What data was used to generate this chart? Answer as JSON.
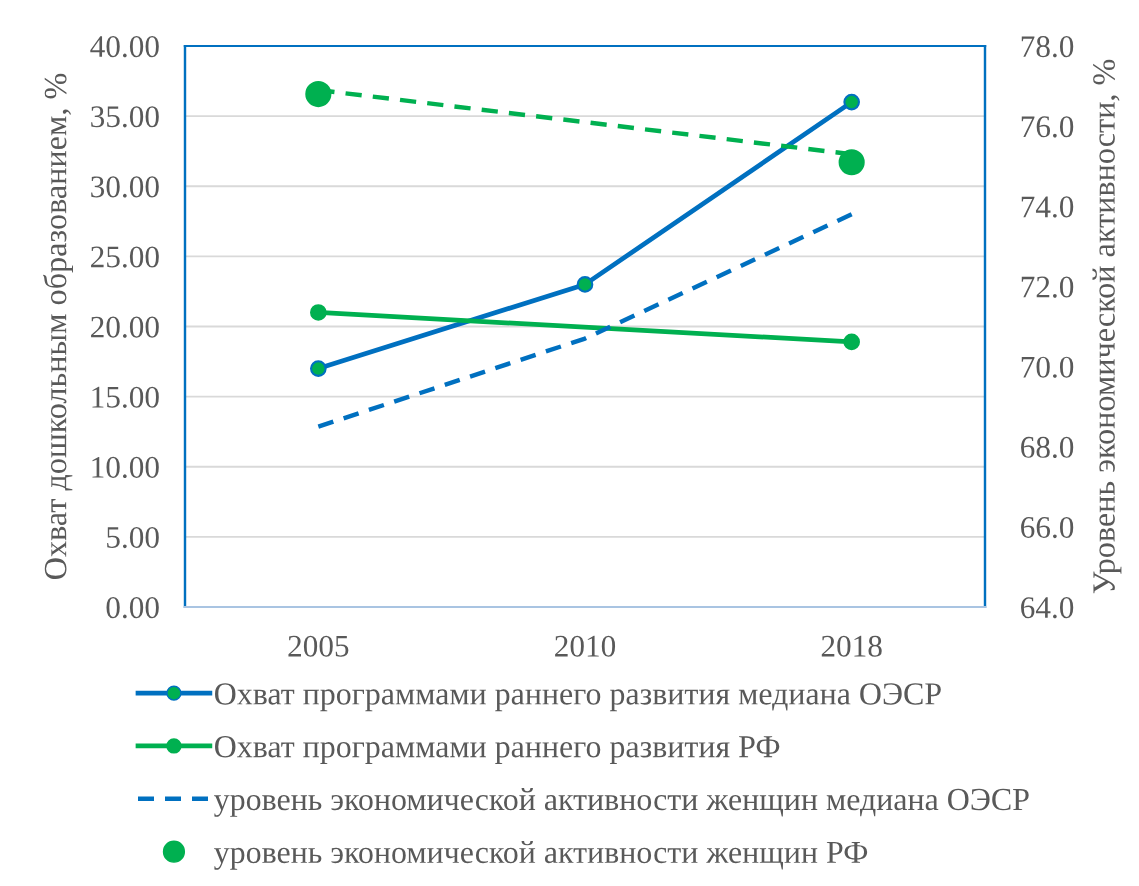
{
  "chart_data": {
    "type": "line",
    "categories": [
      "2005",
      "2010",
      "2018"
    ],
    "ylabel": "Охват дошкольным образованием, %",
    "y2label": "Уровень экономической активности, %",
    "ylim": [
      0,
      40
    ],
    "yticks": [
      {
        "value": 0,
        "label": "0.00"
      },
      {
        "value": 5,
        "label": "5.00"
      },
      {
        "value": 10,
        "label": "10.00"
      },
      {
        "value": 15,
        "label": "15.00"
      },
      {
        "value": 20,
        "label": "20.00"
      },
      {
        "value": 25,
        "label": "25.00"
      },
      {
        "value": 30,
        "label": "30.00"
      },
      {
        "value": 35,
        "label": "35.00"
      },
      {
        "value": 40,
        "label": "40.00"
      }
    ],
    "y2lim": [
      64,
      78
    ],
    "y2ticks": [
      {
        "value": 64,
        "label": "64.0"
      },
      {
        "value": 66,
        "label": "66.0"
      },
      {
        "value": 68,
        "label": "68.0"
      },
      {
        "value": 70,
        "label": "70.0"
      },
      {
        "value": 72,
        "label": "72.0"
      },
      {
        "value": 74,
        "label": "74.0"
      },
      {
        "value": 76,
        "label": "76.0"
      },
      {
        "value": 78,
        "label": "78.0"
      }
    ],
    "grid": "y",
    "legend": "bottom",
    "series": [
      {
        "name": "Охват программами раннего развития медиана ОЭСР",
        "color": "#0070c0",
        "colors": [
          "#00b050",
          "#00b050",
          "#00b050"
        ],
        "marker": "circle",
        "values": [
          17,
          23,
          36
        ]
      },
      {
        "name": "Охват программами раннего развития РФ",
        "color": "#00b050",
        "marker": "circle",
        "values": [
          21,
          null,
          18.9
        ]
      },
      {
        "name": "уровень экономической активности женщин медиана ОЭСР",
        "color": "#0070c0",
        "line_style": "dashed",
        "marker": "none",
        "axis": "y2",
        "values": [
          68.5,
          70.7,
          73.8
        ]
      },
      {
        "name": "уровень экономической активности женщин РФ",
        "type": "scatter",
        "color": "#00b050",
        "marker": "circle",
        "axis": "y2",
        "values": [
          76.8,
          null,
          75.1
        ]
      },
      {
        "type": "line",
        "color": "#00b050",
        "line_style": "dashed",
        "marker": "none",
        "axis": "y2",
        "values": [
          76.9,
          null,
          75.3
        ]
      }
    ]
  }
}
